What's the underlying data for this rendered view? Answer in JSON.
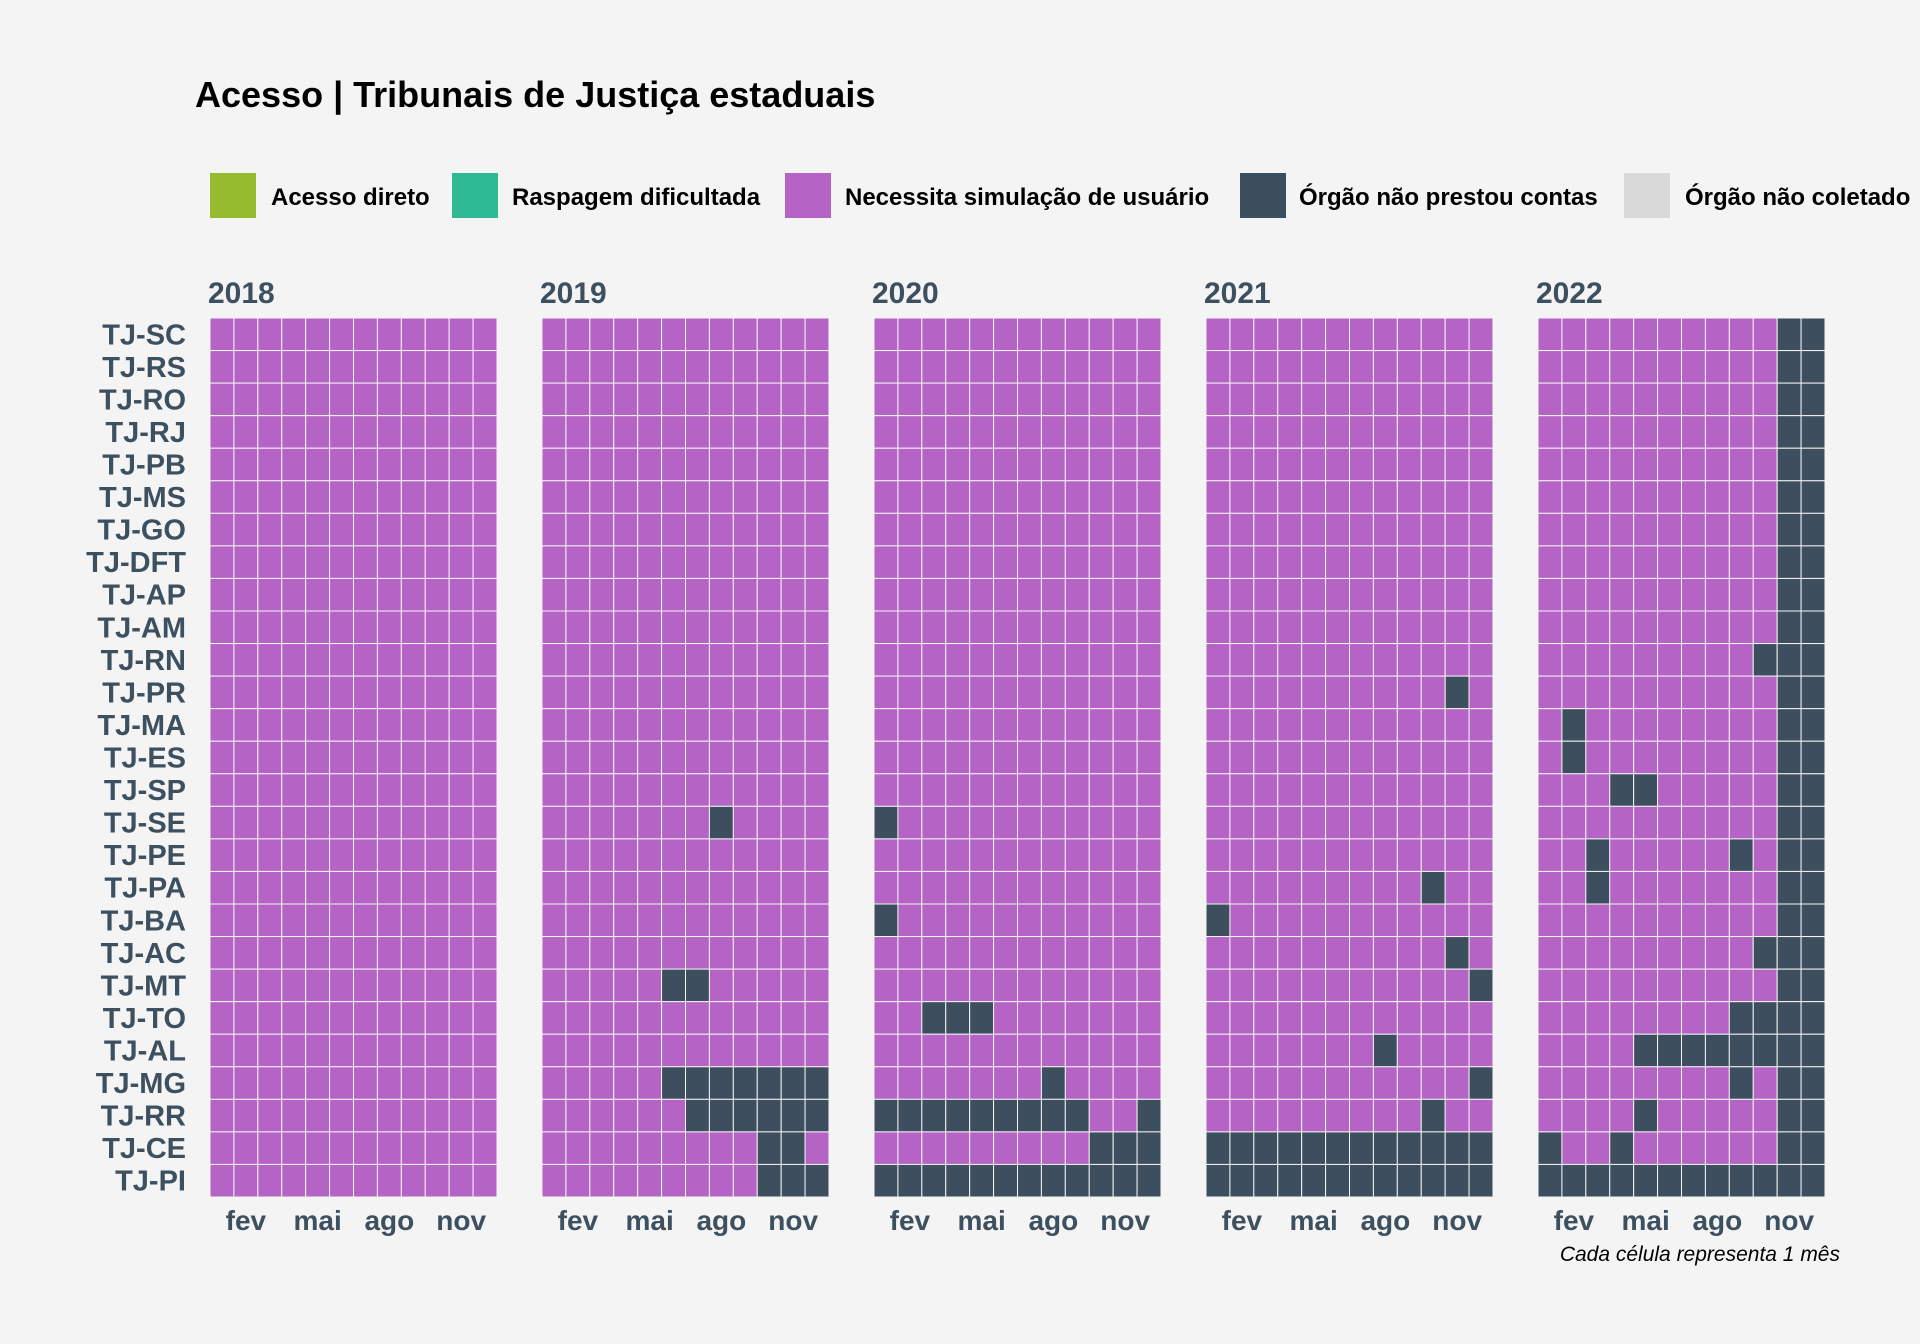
{
  "chart_data": {
    "type": "heatmap",
    "title": "Acesso | Tribunais de Justiça estaduais",
    "caption": "Cada célula representa 1 mês",
    "legend_position": "top",
    "legend": [
      {
        "key": "A",
        "label": "Acesso direto",
        "color": "#97bb2f"
      },
      {
        "key": "R",
        "label": "Raspagem dificultada",
        "color": "#2ebb93"
      },
      {
        "key": "N",
        "label": "Necessita simulação de usuário",
        "color": "#b564c6"
      },
      {
        "key": "X",
        "label": "Órgão não prestou contas",
        "color": "#3d4f5f"
      },
      {
        "key": "C",
        "label": "Órgão não coletado",
        "color": "#d9d9d9"
      }
    ],
    "years": [
      "2018",
      "2019",
      "2020",
      "2021",
      "2022"
    ],
    "x_tick_labels": [
      "fev",
      "mai",
      "ago",
      "nov"
    ],
    "x_tick_months": [
      2,
      5,
      8,
      11
    ],
    "courts": [
      "TJ-SC",
      "TJ-RS",
      "TJ-RO",
      "TJ-RJ",
      "TJ-PB",
      "TJ-MS",
      "TJ-GO",
      "TJ-DFT",
      "TJ-AP",
      "TJ-AM",
      "TJ-RN",
      "TJ-PR",
      "TJ-MA",
      "TJ-ES",
      "TJ-SP",
      "TJ-SE",
      "TJ-PE",
      "TJ-PA",
      "TJ-BA",
      "TJ-AC",
      "TJ-MT",
      "TJ-TO",
      "TJ-AL",
      "TJ-MG",
      "TJ-RR",
      "TJ-CE",
      "TJ-PI"
    ],
    "cells": {
      "2018": {
        "TJ-SC": "NNNNNNNNNNNN",
        "TJ-RS": "NNNNNNNNNNNN",
        "TJ-RO": "NNNNNNNNNNNN",
        "TJ-RJ": "NNNNNNNNNNNN",
        "TJ-PB": "NNNNNNNNNNNN",
        "TJ-MS": "NNNNNNNNNNNN",
        "TJ-GO": "NNNNNNNNNNNN",
        "TJ-DFT": "NNNNNNNNNNNN",
        "TJ-AP": "NNNNNNNNNNNN",
        "TJ-AM": "NNNNNNNNNNNN",
        "TJ-RN": "NNNNNNNNNNNN",
        "TJ-PR": "NNNNNNNNNNNN",
        "TJ-MA": "NNNNNNNNNNNN",
        "TJ-ES": "NNNNNNNNNNNN",
        "TJ-SP": "NNNNNNNNNNNN",
        "TJ-SE": "NNNNNNNNNNNN",
        "TJ-PE": "NNNNNNNNNNNN",
        "TJ-PA": "NNNNNNNNNNNN",
        "TJ-BA": "NNNNNNNNNNNN",
        "TJ-AC": "NNNNNNNNNNNN",
        "TJ-MT": "NNNNNNNNNNNN",
        "TJ-TO": "NNNNNNNNNNNN",
        "TJ-AL": "NNNNNNNNNNNN",
        "TJ-MG": "NNNNNNNNNNNN",
        "TJ-RR": "NNNNNNNNNNNN",
        "TJ-CE": "NNNNNNNNNNNN",
        "TJ-PI": "NNNNNNNNNNNN"
      },
      "2019": {
        "TJ-SC": "NNNNNNNNNNNN",
        "TJ-RS": "NNNNNNNNNNNN",
        "TJ-RO": "NNNNNNNNNNNN",
        "TJ-RJ": "NNNNNNNNNNNN",
        "TJ-PB": "NNNNNNNNNNNN",
        "TJ-MS": "NNNNNNNNNNNN",
        "TJ-GO": "NNNNNNNNNNNN",
        "TJ-DFT": "NNNNNNNNNNNN",
        "TJ-AP": "NNNNNNNNNNNN",
        "TJ-AM": "NNNNNNNNNNNN",
        "TJ-RN": "NNNNNNNNNNNN",
        "TJ-PR": "NNNNNNNNNNNN",
        "TJ-MA": "NNNNNNNNNNNN",
        "TJ-ES": "NNNNNNNNNNNN",
        "TJ-SP": "NNNNNNNNNNNN",
        "TJ-SE": "NNNNNNNXNNNN",
        "TJ-PE": "NNNNNNNNNNNN",
        "TJ-PA": "NNNNNNNNNNNN",
        "TJ-BA": "NNNNNNNNNNNN",
        "TJ-AC": "NNNNNNNNNNNN",
        "TJ-MT": "NNNNNXXNNNNN",
        "TJ-TO": "NNNNNNNNNNNN",
        "TJ-AL": "NNNNNNNNNNNN",
        "TJ-MG": "NNNNNXXXXXXX",
        "TJ-RR": "NNNNNNXXXXXX",
        "TJ-CE": "NNNNNNNNNXXN",
        "TJ-PI": "NNNNNNNNNXXX"
      },
      "2020": {
        "TJ-SC": "NNNNNNNNNNNN",
        "TJ-RS": "NNNNNNNNNNNN",
        "TJ-RO": "NNNNNNNNNNNN",
        "TJ-RJ": "NNNNNNNNNNNN",
        "TJ-PB": "NNNNNNNNNNNN",
        "TJ-MS": "NNNNNNNNNNNN",
        "TJ-GO": "NNNNNNNNNNNN",
        "TJ-DFT": "NNNNNNNNNNNN",
        "TJ-AP": "NNNNNNNNNNNN",
        "TJ-AM": "NNNNNNNNNNNN",
        "TJ-RN": "NNNNNNNNNNNN",
        "TJ-PR": "NNNNNNNNNNNN",
        "TJ-MA": "NNNNNNNNNNNN",
        "TJ-ES": "NNNNNNNNNNNN",
        "TJ-SP": "NNNNNNNNNNNN",
        "TJ-SE": "XNNNNNNNNNNN",
        "TJ-PE": "NNNNNNNNNNNN",
        "TJ-PA": "NNNNNNNNNNNN",
        "TJ-BA": "XNNNNNNNNNNN",
        "TJ-AC": "NNNNNNNNNNNN",
        "TJ-MT": "NNNNNNNNNNNN",
        "TJ-TO": "NNXXXNNNNNNN",
        "TJ-AL": "NNNNNNNNNNNN",
        "TJ-MG": "NNNNNNNXNNNN",
        "TJ-RR": "XXXXXXXXXNNX",
        "TJ-CE": "NNNNNNNNNXXX",
        "TJ-PI": "XXXXXXXXXXXX"
      },
      "2021": {
        "TJ-SC": "NNNNNNNNNNNN",
        "TJ-RS": "NNNNNNNNNNNN",
        "TJ-RO": "NNNNNNNNNNNN",
        "TJ-RJ": "NNNNNNNNNNNN",
        "TJ-PB": "NNNNNNNNNNNN",
        "TJ-MS": "NNNNNNNNNNNN",
        "TJ-GO": "NNNNNNNNNNNN",
        "TJ-DFT": "NNNNNNNNNNNN",
        "TJ-AP": "NNNNNNNNNNNN",
        "TJ-AM": "NNNNNNNNNNNN",
        "TJ-RN": "NNNNNNNNNNNN",
        "TJ-PR": "NNNNNNNNNNXN",
        "TJ-MA": "NNNNNNNNNNNN",
        "TJ-ES": "NNNNNNNNNNNN",
        "TJ-SP": "NNNNNNNNNNNN",
        "TJ-SE": "NNNNNNNNNNNN",
        "TJ-PE": "NNNNNNNNNNNN",
        "TJ-PA": "NNNNNNNNNXNN",
        "TJ-BA": "XNNNNNNNNNNN",
        "TJ-AC": "NNNNNNNNNNXN",
        "TJ-MT": "NNNNNNNNNNNX",
        "TJ-TO": "NNNNNNNNNNNN",
        "TJ-AL": "NNNNNNNXNNNN",
        "TJ-MG": "NNNNNNNNNNNX",
        "TJ-RR": "NNNNNNNNNXNN",
        "TJ-CE": "XXXXXXXXXXXX",
        "TJ-PI": "XXXXXXXXXXXX"
      },
      "2022": {
        "TJ-SC": "NNNNNNNNNNXX",
        "TJ-RS": "NNNNNNNNNNXX",
        "TJ-RO": "NNNNNNNNNNXX",
        "TJ-RJ": "NNNNNNNNNNXX",
        "TJ-PB": "NNNNNNNNNNXX",
        "TJ-MS": "NNNNNNNNNNXX",
        "TJ-GO": "NNNNNNNNNNXX",
        "TJ-DFT": "NNNNNNNNNNXX",
        "TJ-AP": "NNNNNNNNNNXX",
        "TJ-AM": "NNNNNNNNNNXX",
        "TJ-RN": "NNNNNNNNNXXX",
        "TJ-PR": "NNNNNNNNNNXX",
        "TJ-MA": "NXNNNNNNNNXX",
        "TJ-ES": "NXNNNNNNNNXX",
        "TJ-SP": "NNNXXNNNNNXX",
        "TJ-SE": "NNNNNNNNNNXX",
        "TJ-PE": "NNXNNNNNXNXX",
        "TJ-PA": "NNXNNNNNNNXX",
        "TJ-BA": "NNNNNNNNNNXX",
        "TJ-AC": "NNNNNNNNNXXX",
        "TJ-MT": "NNNNNNNNNNXX",
        "TJ-TO": "NNNNNNNNXXXX",
        "TJ-AL": "NNNNXXXXXXXX",
        "TJ-MG": "NNNNNNNNXNXX",
        "TJ-RR": "NNNNXNNNNNXX",
        "TJ-CE": "XNNXNNNNNNXX",
        "TJ-PI": "XXXXXXXXXXXX"
      }
    }
  }
}
